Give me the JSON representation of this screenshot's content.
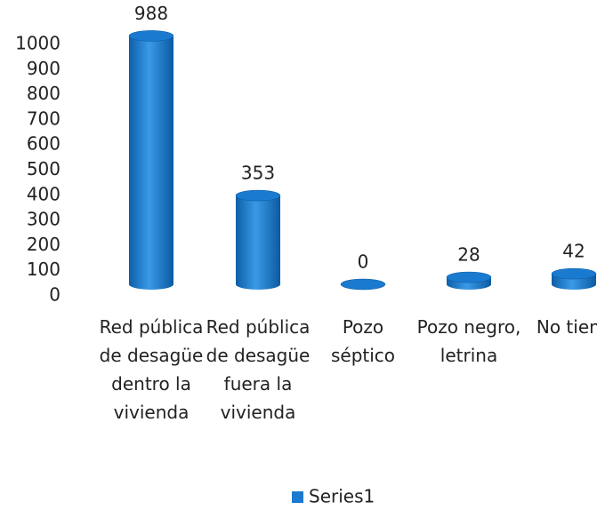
{
  "chart_data": {
    "type": "bar",
    "categories": [
      "Red pública de desagüe dentro la vivienda",
      "Red pública de desagüe fuera la vivienda",
      "Pozo séptico",
      "Pozo negro, letrina",
      "No tiene"
    ],
    "series": [
      {
        "name": "Series1",
        "color": "#1a7ad0",
        "values": [
          988,
          353,
          0,
          28,
          42
        ]
      }
    ],
    "ylim": [
      0,
      1000
    ],
    "yticks": [
      0,
      100,
      200,
      300,
      400,
      500,
      600,
      700,
      800,
      900,
      1000
    ],
    "grid": false,
    "legend": "bottom"
  }
}
